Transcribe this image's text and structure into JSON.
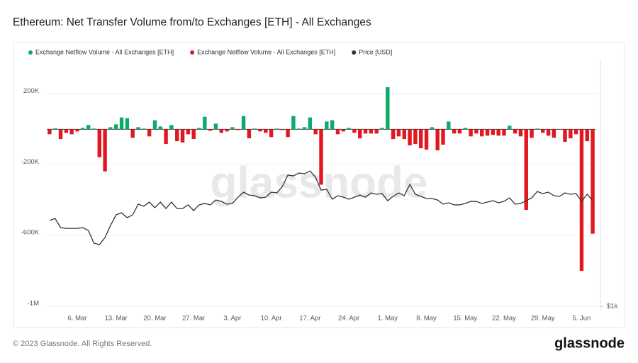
{
  "title": "Ethereum: Net Transfer Volume from/to Exchanges [ETH] - All Exchanges",
  "watermark": "glassnode",
  "footer": "© 2023 Glassnode. All Rights Reserved.",
  "brand": "glassnode",
  "chart_data": {
    "type": "bar",
    "categories": [
      null,
      null,
      null,
      null,
      null,
      "6. Mar",
      null,
      null,
      null,
      null,
      null,
      null,
      "13. Mar",
      null,
      null,
      null,
      null,
      null,
      null,
      "20. Mar",
      null,
      null,
      null,
      null,
      null,
      null,
      "27. Mar",
      null,
      null,
      null,
      null,
      null,
      null,
      "3. Apr",
      null,
      null,
      null,
      null,
      null,
      null,
      "10. Apr",
      null,
      null,
      null,
      null,
      null,
      null,
      "17. Apr",
      null,
      null,
      null,
      null,
      null,
      null,
      "24. Apr",
      null,
      null,
      null,
      null,
      null,
      null,
      "1. May",
      null,
      null,
      null,
      null,
      null,
      null,
      "8. May",
      null,
      null,
      null,
      null,
      null,
      null,
      "15. May",
      null,
      null,
      null,
      null,
      null,
      null,
      "22. May",
      null,
      null,
      null,
      null,
      null,
      null,
      "29. May",
      null,
      null,
      null,
      null,
      null,
      null,
      "5. Jun",
      null,
      null
    ],
    "ylim": [
      -1000000,
      390000
    ],
    "yticks": [
      {
        "value": 200000,
        "label": "200K"
      },
      {
        "value": -200000,
        "label": "-200K"
      },
      {
        "value": -600000,
        "label": "-600K"
      },
      {
        "value": -1000000,
        "label": "-1M"
      }
    ],
    "y2lim": [
      1000,
      3500
    ],
    "y2log": true,
    "y2ticks": [
      {
        "value": 1000,
        "label": "$1k"
      }
    ],
    "grid": true,
    "legend": "top-left",
    "series": [
      {
        "name": "Exchange Netflow Volume - All Exchanges [ETH]",
        "type": "bar",
        "color": "#0eaa6c",
        "values": [
          null,
          5000,
          null,
          null,
          null,
          null,
          8000,
          24000,
          4000,
          null,
          null,
          12000,
          28000,
          67000,
          63000,
          null,
          12000,
          4000,
          null,
          51000,
          16000,
          null,
          24000,
          null,
          null,
          null,
          null,
          8000,
          71000,
          null,
          32000,
          null,
          null,
          12000,
          null,
          75000,
          null,
          4000,
          null,
          null,
          null,
          4000,
          null,
          null,
          75000,
          4000,
          12000,
          67000,
          null,
          null,
          44000,
          51000,
          null,
          null,
          8000,
          null,
          null,
          null,
          null,
          null,
          8000,
          238000,
          null,
          null,
          null,
          null,
          null,
          null,
          null,
          12000,
          null,
          null,
          44000,
          null,
          null,
          8000,
          null,
          null,
          null,
          null,
          null,
          null,
          null,
          20000,
          null,
          null,
          null,
          null,
          4000,
          null,
          null,
          null,
          null,
          null,
          null,
          null,
          null,
          null,
          null
        ]
      },
      {
        "name": "Exchange Netflow Volume - All Exchanges [ETH]",
        "type": "bar",
        "color": "#e3171f",
        "values": [
          -28000,
          null,
          -55000,
          -20000,
          -28000,
          -12000,
          null,
          null,
          null,
          -158000,
          -238000,
          null,
          null,
          null,
          null,
          -48000,
          null,
          null,
          -40000,
          null,
          null,
          -83000,
          null,
          -67000,
          -75000,
          -28000,
          -55000,
          null,
          null,
          -8000,
          null,
          -20000,
          -12000,
          null,
          -4000,
          null,
          -51000,
          null,
          -12000,
          -20000,
          -44000,
          null,
          -4000,
          -44000,
          null,
          null,
          null,
          null,
          -28000,
          -313000,
          null,
          null,
          -28000,
          -12000,
          null,
          -20000,
          -51000,
          -24000,
          -24000,
          -24000,
          null,
          null,
          -55000,
          -40000,
          -55000,
          -91000,
          -83000,
          -107000,
          -115000,
          null,
          -119000,
          -87000,
          null,
          -24000,
          -24000,
          null,
          -40000,
          -24000,
          -40000,
          -36000,
          -32000,
          -36000,
          -36000,
          null,
          -24000,
          -40000,
          -455000,
          -48000,
          null,
          -20000,
          -36000,
          -48000,
          0,
          -71000,
          -51000,
          -28000,
          -800000,
          -67000,
          -590000
        ]
      },
      {
        "name": "Price [USD]",
        "type": "line",
        "axis": "y2",
        "color": "#333333",
        "values": [
          1548,
          1564,
          1493,
          1487,
          1487,
          1487,
          1493,
          1471,
          1379,
          1369,
          1419,
          1509,
          1593,
          1610,
          1570,
          1593,
          1682,
          1664,
          1700,
          1652,
          1700,
          1645,
          1700,
          1645,
          1645,
          1676,
          1628,
          1676,
          1688,
          1676,
          1718,
          1706,
          1682,
          1688,
          1743,
          1788,
          1762,
          1756,
          1737,
          1743,
          1788,
          1781,
          1840,
          1950,
          1943,
          1971,
          1964,
          1992,
          1929,
          1807,
          1814,
          1725,
          1756,
          1743,
          1725,
          1743,
          1762,
          1743,
          1781,
          1769,
          1775,
          1712,
          1750,
          1781,
          1756,
          1860,
          1769,
          1750,
          1731,
          1731,
          1718,
          1682,
          1694,
          1676,
          1676,
          1688,
          1706,
          1706,
          1688,
          1700,
          1712,
          1694,
          1706,
          1737,
          1682,
          1688,
          1712,
          1737,
          1794,
          1775,
          1788,
          1756,
          1750,
          1781,
          1769,
          1775,
          1706,
          1769,
          1712
        ]
      }
    ]
  }
}
